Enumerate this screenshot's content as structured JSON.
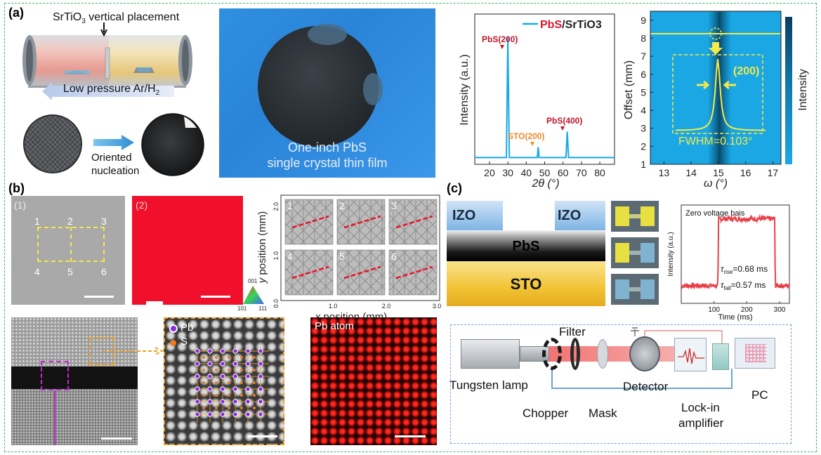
{
  "panel_labels": {
    "a": "(a)",
    "b": "(b)",
    "c": "(c)"
  },
  "furnace": {
    "placement": "SrTiO",
    "placement_sub": "3",
    "placement_rest": " vertical placement",
    "pressure_a": "Low pressure  Ar/H",
    "pressure_sub": "2",
    "nucleation_1": "Oriented",
    "nucleation_2": "nucleation"
  },
  "wafer_photo": {
    "line1": "One-inch PbS",
    "line2": "single crystal thin film"
  },
  "xrd": {
    "legend_pbs": "PbS",
    "legend_rest": "/SrTiO3",
    "peak1": "PbS(200)",
    "peak2": "PbS(400)",
    "peak3": "STO(200)",
    "ylabel": "Intensity (a.u.)",
    "xlabel": "2θ (°)",
    "xticks": [
      "20",
      "30",
      "40",
      "50",
      "60",
      "70",
      "80"
    ]
  },
  "rocking": {
    "ylabel": "Offset (mm)",
    "xlabel": "ω (°)",
    "cbar_label": "Intensity",
    "yticks": [
      "1",
      "2",
      "3",
      "4",
      "5",
      "6",
      "7",
      "8",
      "9"
    ],
    "xticks": [
      "13",
      "14",
      "15",
      "16",
      "17"
    ],
    "peak": "(200)",
    "fwhm": "FWHM=0.103°"
  },
  "ebsd": {
    "sub1": "(1)",
    "sub2": "(2)",
    "points": [
      "1",
      "2",
      "3",
      "4",
      "5",
      "6"
    ],
    "tri_top": "001",
    "tri_left": "101",
    "tri_right": "111",
    "pattern_nums": [
      "1",
      "2",
      "3",
      "4",
      "5",
      "6"
    ],
    "ylabel": "y position (mm)",
    "xlabel": "x position (mm)",
    "yticks": [
      "2.0",
      "1.0",
      "0.0"
    ],
    "xticks": [
      "1.0",
      "2.0",
      "3.0"
    ]
  },
  "tem": {
    "pb": "Pb",
    "s": "S",
    "pb_atom": "Pb atom"
  },
  "device": {
    "izo_left": "IZO",
    "izo_right": "IZO",
    "pbs": "PbS",
    "sto": "STO"
  },
  "photo": {
    "title": "Zero voltage bais",
    "ylabel": "Intensity (a.u.)",
    "xlabel": "Time (ms)",
    "xticks": [
      "100",
      "200",
      "300"
    ],
    "rise": "=0.68 ms",
    "fall": "=0.57 ms",
    "rise_sub": "rise",
    "fall_sub": "fall"
  },
  "setup": {
    "lamp": "Tungsten lamp",
    "filter": "Filter",
    "detector": "Detector",
    "pc": "PC",
    "chopper": "Chopper",
    "mask": "Mask",
    "lockin_1": "Lock-in",
    "lockin_2": "amplifier"
  },
  "colors": {
    "frame": "#3fb36a",
    "cyan": "#17a9e6",
    "red": "#e8132b",
    "yellow": "#f4e94a",
    "pbs_red": "#d7192c",
    "sto_orange": "#f08a24"
  },
  "chart_data": [
    {
      "type": "line",
      "title": "PbS/SrTiO3",
      "xlabel": "2θ (°)",
      "ylabel": "Intensity (a.u.)",
      "xlim": [
        12,
        88
      ],
      "series": [
        {
          "name": "PbS/SrTiO3",
          "x": [
            12,
            29.2,
            30.0,
            30.8,
            46.0,
            46.5,
            47.0,
            61.6,
            62.3,
            63.0,
            88
          ],
          "y": [
            0.02,
            0.02,
            0.95,
            0.02,
            0.02,
            0.1,
            0.02,
            0.02,
            0.22,
            0.02,
            0.02
          ]
        }
      ],
      "annotations": [
        "PbS(200)",
        "STO(200)",
        "PbS(400)"
      ]
    },
    {
      "type": "heatmap",
      "xlabel": "ω (°)",
      "ylabel": "Offset (mm)",
      "xlim": [
        12.5,
        17.3
      ],
      "ylim": [
        1,
        9.5
      ],
      "peak_center": 15.05,
      "fwhm_deg": 0.103,
      "annotations": [
        "(200)",
        "FWHM=0.103°"
      ]
    },
    {
      "type": "line",
      "title": "Zero voltage bais",
      "xlabel": "Time (ms)",
      "ylabel": "Intensity (a.u.)",
      "xlim": [
        0,
        330
      ],
      "series": [
        {
          "name": "photoresponse",
          "x": [
            0,
            112,
            114,
            285,
            287,
            330
          ],
          "y": [
            0.18,
            0.18,
            0.86,
            0.86,
            0.18,
            0.18
          ]
        }
      ],
      "rise_time_ms": 0.68,
      "fall_time_ms": 0.57
    }
  ]
}
